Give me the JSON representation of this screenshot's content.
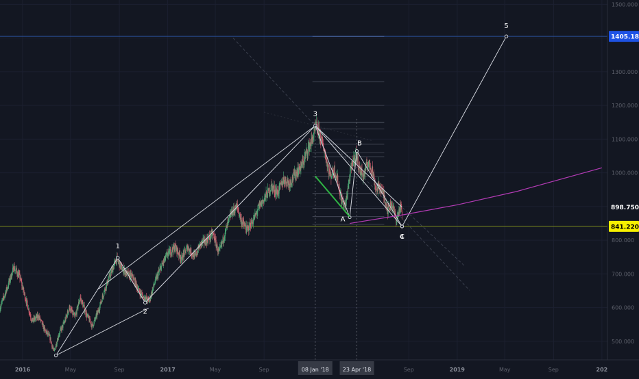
{
  "chart_data": {
    "type": "candlestick",
    "y_axis": {
      "ticks": [
        500,
        600,
        700,
        800,
        900,
        1000,
        1100,
        1200,
        1300,
        1400,
        1500
      ],
      "tick_labels": [
        "500.000",
        "600.000",
        "700.000",
        "800.000",
        "900.000",
        "1000.000",
        "1100.000",
        "1200.000",
        "1300.000",
        "1400.000",
        "1500.000"
      ],
      "range": [
        445,
        1513
      ]
    },
    "x_axis": {
      "range": [
        "2015-11-05",
        "2020-01-15"
      ],
      "ticks": [
        {
          "date": "2016-01-01",
          "label": "2016",
          "bold": true
        },
        {
          "date": "2016-05-01",
          "label": "May",
          "bold": false
        },
        {
          "date": "2016-09-01",
          "label": "Sep",
          "bold": false
        },
        {
          "date": "2017-01-01",
          "label": "2017",
          "bold": true
        },
        {
          "date": "2017-05-01",
          "label": "May",
          "bold": false
        },
        {
          "date": "2017-09-01",
          "label": "Sep",
          "bold": false
        },
        {
          "date": "2018-09-01",
          "label": "Sep",
          "bold": false
        },
        {
          "date": "2019-01-01",
          "label": "2019",
          "bold": true
        },
        {
          "date": "2019-05-01",
          "label": "May",
          "bold": false
        },
        {
          "date": "2019-09-01",
          "label": "Sep",
          "bold": false
        },
        {
          "date": "2020-01-01",
          "label": "202",
          "bold": true
        }
      ],
      "highlight_ticks": [
        {
          "date": "2018-01-08",
          "label": "08 Jan '18"
        },
        {
          "date": "2018-04-23",
          "label": "23 Apr '18"
        }
      ]
    },
    "price_labels": [
      {
        "value": 1405.181,
        "label": "1405.181",
        "background": "#1e53e5",
        "color": "#ffffff"
      },
      {
        "value": 898.75,
        "label": "898.750",
        "background": "#131722",
        "color": "#ffffff"
      },
      {
        "value": 841.22,
        "label": "841.220",
        "background": "#f7f000",
        "color": "#000000"
      }
    ],
    "horizontal_lines": [
      {
        "value": 1405.181,
        "color": "#2a4f9a"
      },
      {
        "value": 841.22,
        "color": "#7b8a1d"
      }
    ],
    "price_path": [
      [
        "2015-11-05",
        600
      ],
      [
        "2015-11-25",
        665
      ],
      [
        "2015-12-10",
        720
      ],
      [
        "2015-12-25",
        690
      ],
      [
        "2016-01-10",
        620
      ],
      [
        "2016-01-25",
        560
      ],
      [
        "2016-02-10",
        575
      ],
      [
        "2016-02-25",
        535
      ],
      [
        "2016-03-10",
        510
      ],
      [
        "2016-03-20",
        468
      ],
      [
        "2016-04-01",
        520
      ],
      [
        "2016-04-15",
        555
      ],
      [
        "2016-04-28",
        600
      ],
      [
        "2016-05-12",
        570
      ],
      [
        "2016-05-25",
        630
      ],
      [
        "2016-06-10",
        580
      ],
      [
        "2016-06-25",
        545
      ],
      [
        "2016-07-10",
        590
      ],
      [
        "2016-07-25",
        650
      ],
      [
        "2016-08-10",
        700
      ],
      [
        "2016-08-25",
        745
      ],
      [
        "2016-09-05",
        720
      ],
      [
        "2016-09-20",
        700
      ],
      [
        "2016-10-05",
        690
      ],
      [
        "2016-10-20",
        650
      ],
      [
        "2016-11-02",
        630
      ],
      [
        "2016-11-15",
        620
      ],
      [
        "2016-12-01",
        680
      ],
      [
        "2016-12-15",
        720
      ],
      [
        "2017-01-01",
        760
      ],
      [
        "2017-01-20",
        780
      ],
      [
        "2017-02-05",
        745
      ],
      [
        "2017-02-20",
        780
      ],
      [
        "2017-03-10",
        750
      ],
      [
        "2017-03-25",
        790
      ],
      [
        "2017-04-10",
        800
      ],
      [
        "2017-04-25",
        820
      ],
      [
        "2017-05-10",
        760
      ],
      [
        "2017-05-25",
        820
      ],
      [
        "2017-06-10",
        880
      ],
      [
        "2017-06-25",
        900
      ],
      [
        "2017-07-05",
        860
      ],
      [
        "2017-07-20",
        830
      ],
      [
        "2017-08-05",
        860
      ],
      [
        "2017-08-20",
        900
      ],
      [
        "2017-09-05",
        930
      ],
      [
        "2017-09-20",
        960
      ],
      [
        "2017-10-05",
        940
      ],
      [
        "2017-10-20",
        980
      ],
      [
        "2017-11-05",
        970
      ],
      [
        "2017-11-20",
        1000
      ],
      [
        "2017-12-05",
        1020
      ],
      [
        "2017-12-20",
        1070
      ],
      [
        "2018-01-01",
        1100
      ],
      [
        "2018-01-10",
        1140
      ],
      [
        "2018-01-20",
        1110
      ],
      [
        "2018-01-28",
        1080
      ],
      [
        "2018-02-05",
        1040
      ],
      [
        "2018-02-15",
        990
      ],
      [
        "2018-02-25",
        1010
      ],
      [
        "2018-03-05",
        980
      ],
      [
        "2018-03-15",
        920
      ],
      [
        "2018-03-25",
        900
      ],
      [
        "2018-04-01",
        960
      ],
      [
        "2018-04-10",
        1020
      ],
      [
        "2018-04-20",
        1060
      ],
      [
        "2018-04-30",
        1010
      ],
      [
        "2018-05-10",
        990
      ],
      [
        "2018-05-20",
        1030
      ],
      [
        "2018-06-01",
        1010
      ],
      [
        "2018-06-10",
        950
      ],
      [
        "2018-06-20",
        960
      ],
      [
        "2018-07-01",
        930
      ],
      [
        "2018-07-10",
        890
      ],
      [
        "2018-07-20",
        910
      ],
      [
        "2018-08-01",
        860
      ],
      [
        "2018-08-10",
        900
      ],
      [
        "2018-08-15",
        880
      ]
    ],
    "wave_points": [
      {
        "label": "",
        "date": "2016-03-25",
        "value": 458
      },
      {
        "label": "1",
        "date": "2016-08-28",
        "value": 748
      },
      {
        "label": "2",
        "date": "2016-11-05",
        "value": 615
      },
      {
        "label": "3",
        "date": "2018-01-08",
        "value": 1140
      },
      {
        "label": "4",
        "date": "2018-08-15",
        "value": 841
      },
      {
        "label": "5",
        "date": "2019-05-05",
        "value": 1405
      }
    ],
    "abc_points": [
      {
        "label": "A",
        "date": "2018-04-05",
        "value": 868
      },
      {
        "label": "B",
        "date": "2018-04-23",
        "value": 1065
      },
      {
        "label": "C",
        "date": "2018-08-15",
        "value": 841
      }
    ],
    "channel_upper": [
      [
        "2018-01-08",
        1140
      ],
      [
        "2018-08-15",
        898
      ]
    ],
    "green_line": [
      [
        "2018-01-08",
        990
      ],
      [
        "2018-04-05",
        870
      ]
    ],
    "fib_levels": [
      1150,
      1130,
      1085,
      1060,
      1048,
      990,
      939,
      895,
      870,
      847
    ],
    "magenta_curve": [
      [
        "2018-04-05",
        850
      ],
      [
        "2018-08-15",
        875
      ],
      [
        "2019-01-01",
        905
      ],
      [
        "2019-06-01",
        945
      ],
      [
        "2020-01-01",
        1015
      ]
    ],
    "dotted_verticals": [
      "2018-01-08",
      "2018-04-23"
    ]
  }
}
